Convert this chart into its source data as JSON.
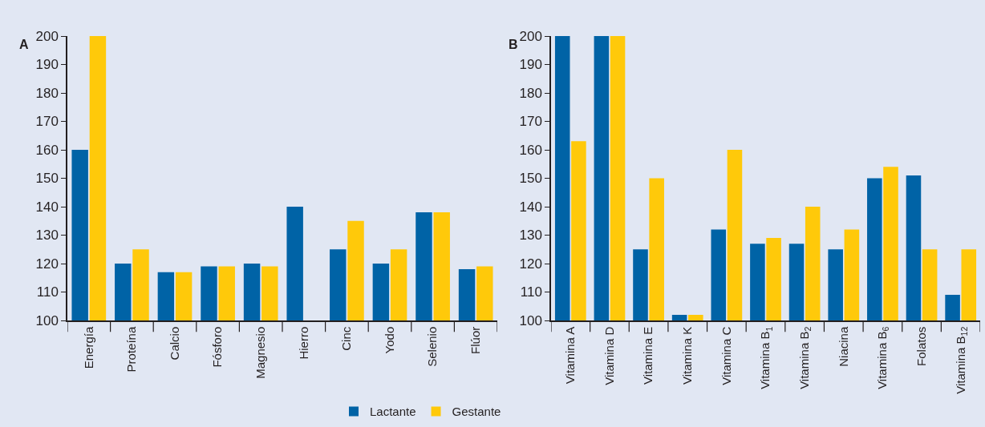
{
  "chart_data": [
    {
      "type": "bar",
      "title": "A",
      "categories": [
        "Energía",
        "Proteína",
        "Calcio",
        "Fósforo",
        "Magnesio",
        "Hierro",
        "Cinc",
        "Yodo",
        "Selenio",
        "Flúor"
      ],
      "series": [
        {
          "name": "Lactante",
          "color": "#0063a6",
          "values": [
            160,
            120,
            117,
            119,
            120,
            140,
            125,
            120,
            138,
            118
          ]
        },
        {
          "name": "Gestante",
          "color": "#ffc90a",
          "values": [
            200,
            125,
            117,
            119,
            119,
            null,
            135,
            125,
            138,
            119
          ]
        }
      ],
      "ylim": [
        100,
        200
      ],
      "yticks": [
        100,
        110,
        120,
        130,
        140,
        150,
        160,
        170,
        180,
        190,
        200
      ],
      "grid": false,
      "legend": "bottom"
    },
    {
      "type": "bar",
      "title": "B",
      "categories": [
        "Vitamina A",
        "Vitamina D",
        "Vitamina E",
        "Vitamina K",
        "Vitamina C",
        "Vitamina B$_{1}$",
        "Vitamina B$_{2}$",
        "Niacina",
        "Vitamina B$_{6}$",
        "Folatos",
        "Vitamina B$_{12}$"
      ],
      "series": [
        {
          "color": "#0063a6",
          "values": [
            200,
            200,
            125,
            102,
            132,
            127,
            127,
            125,
            150,
            151,
            109
          ]
        },
        {
          "color": "#ffc90a",
          "values": [
            163,
            200,
            150,
            102,
            160,
            129,
            140,
            132,
            154,
            125,
            125
          ]
        }
      ],
      "ylim": [
        100,
        200
      ],
      "yticks": [
        100,
        110,
        120,
        130,
        140,
        150,
        160,
        170,
        180,
        190,
        200
      ],
      "grid": false,
      "legend": false
    }
  ]
}
